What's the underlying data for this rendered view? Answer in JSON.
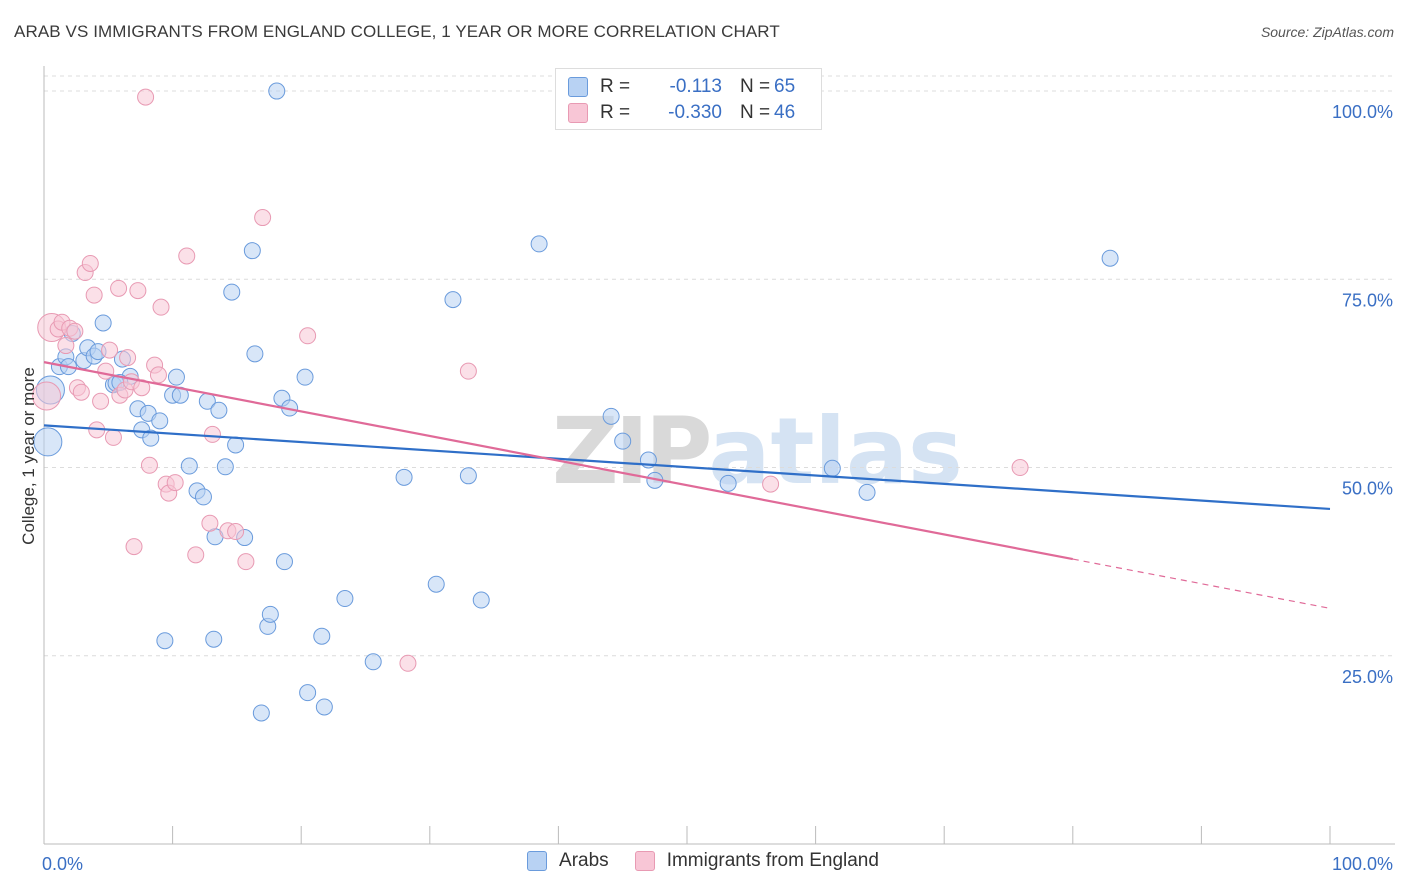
{
  "title": "ARAB VS IMMIGRANTS FROM ENGLAND COLLEGE, 1 YEAR OR MORE CORRELATION CHART",
  "source": "Source: ZipAtlas.com",
  "watermark": {
    "zip": "ZIP",
    "atlas": "atlas"
  },
  "legend_top": [
    {
      "label": "R =",
      "r": "-0.113",
      "n_label": "N =",
      "n": "65"
    },
    {
      "label": "R =",
      "r": "-0.330",
      "n_label": "N =",
      "n": "46"
    }
  ],
  "colors": {
    "arabs_fill": "#b8d2f3",
    "arabs_stroke": "#6a9bdc",
    "arabs_line": "#2f6fc8",
    "england_fill": "#f8c6d6",
    "england_stroke": "#e89ab3",
    "england_line": "#e06a98",
    "tick_label": "#3a6fc4",
    "grid": "#dcdcdc"
  },
  "chart_data": {
    "type": "scatter",
    "title": "ARAB VS IMMIGRANTS FROM ENGLAND COLLEGE, 1 YEAR OR MORE CORRELATION CHART",
    "xlabel": "",
    "ylabel": "College, 1 year or more",
    "xlim": [
      0,
      100
    ],
    "ylim": [
      0,
      102
    ],
    "x_tick_labels": [
      "0.0%",
      "100.0%"
    ],
    "y_ticks": [
      25,
      50,
      75,
      100
    ],
    "y_tick_labels": [
      "25.0%",
      "50.0%",
      "75.0%",
      "100.0%"
    ],
    "grid": true,
    "legend_position": "top-center",
    "series": [
      {
        "name": "Arabs",
        "r": -0.113,
        "n": 65,
        "trend": {
          "x0": 0,
          "y0": 55.6,
          "x1": 100,
          "y1": 44.5,
          "dashed_from": null
        },
        "points": [
          [
            0.3,
            53.4
          ],
          [
            0.5,
            60.3
          ],
          [
            1.2,
            63.4
          ],
          [
            1.7,
            64.7
          ],
          [
            2.2,
            67.8
          ],
          [
            3.1,
            64.2
          ],
          [
            3.4,
            65.9
          ],
          [
            3.9,
            64.8
          ],
          [
            4.6,
            69.2
          ],
          [
            5.4,
            61.0
          ],
          [
            6.1,
            64.4
          ],
          [
            5.6,
            61.2
          ],
          [
            6.7,
            62.1
          ],
          [
            7.3,
            57.8
          ],
          [
            7.6,
            55.0
          ],
          [
            8.1,
            57.2
          ],
          [
            9.0,
            56.2
          ],
          [
            8.3,
            53.9
          ],
          [
            10.3,
            62.0
          ],
          [
            10.0,
            59.6
          ],
          [
            10.6,
            59.6
          ],
          [
            11.3,
            50.2
          ],
          [
            11.9,
            46.9
          ],
          [
            12.4,
            46.1
          ],
          [
            12.7,
            58.8
          ],
          [
            13.3,
            40.8
          ],
          [
            13.6,
            57.6
          ],
          [
            14.1,
            50.1
          ],
          [
            14.6,
            73.3
          ],
          [
            14.9,
            53.0
          ],
          [
            15.6,
            40.7
          ],
          [
            16.2,
            78.8
          ],
          [
            16.4,
            65.1
          ],
          [
            16.9,
            17.4
          ],
          [
            17.4,
            28.9
          ],
          [
            17.6,
            30.5
          ],
          [
            18.1,
            100.0
          ],
          [
            18.5,
            59.2
          ],
          [
            18.7,
            37.5
          ],
          [
            19.1,
            57.9
          ],
          [
            20.3,
            62.0
          ],
          [
            20.5,
            20.1
          ],
          [
            21.6,
            27.6
          ],
          [
            21.8,
            18.2
          ],
          [
            23.4,
            32.6
          ],
          [
            25.6,
            24.2
          ],
          [
            28.0,
            48.7
          ],
          [
            30.5,
            34.5
          ],
          [
            31.8,
            72.3
          ],
          [
            33.0,
            48.9
          ],
          [
            34.0,
            32.4
          ],
          [
            38.5,
            79.7
          ],
          [
            44.1,
            56.8
          ],
          [
            45.0,
            53.5
          ],
          [
            47.0,
            51.0
          ],
          [
            47.5,
            48.3
          ],
          [
            53.2,
            47.9
          ],
          [
            61.3,
            49.9
          ],
          [
            64.0,
            46.7
          ],
          [
            82.9,
            77.8
          ],
          [
            9.4,
            27.0
          ],
          [
            13.2,
            27.2
          ],
          [
            5.9,
            61.3
          ],
          [
            1.9,
            63.4
          ],
          [
            4.2,
            65.4
          ]
        ]
      },
      {
        "name": "Immigrants from England",
        "r": -0.33,
        "n": 46,
        "trend": {
          "x0": 0,
          "y0": 64.0,
          "x1": 100,
          "y1": 31.3,
          "dashed_from": 80
        },
        "points": [
          [
            0.2,
            59.5
          ],
          [
            0.6,
            68.6
          ],
          [
            1.1,
            68.4
          ],
          [
            1.4,
            69.3
          ],
          [
            1.7,
            66.2
          ],
          [
            2.0,
            68.5
          ],
          [
            2.4,
            68.1
          ],
          [
            2.6,
            60.6
          ],
          [
            2.9,
            60.0
          ],
          [
            3.2,
            75.9
          ],
          [
            3.6,
            77.1
          ],
          [
            3.9,
            72.9
          ],
          [
            4.1,
            55.0
          ],
          [
            4.4,
            58.8
          ],
          [
            4.8,
            62.8
          ],
          [
            5.1,
            65.6
          ],
          [
            5.4,
            54.0
          ],
          [
            5.8,
            73.8
          ],
          [
            5.9,
            59.6
          ],
          [
            6.3,
            60.3
          ],
          [
            6.5,
            64.6
          ],
          [
            6.8,
            61.4
          ],
          [
            7.0,
            39.5
          ],
          [
            7.3,
            73.5
          ],
          [
            7.6,
            60.6
          ],
          [
            7.9,
            99.2
          ],
          [
            8.2,
            50.3
          ],
          [
            8.6,
            63.6
          ],
          [
            8.9,
            62.3
          ],
          [
            9.1,
            71.3
          ],
          [
            9.5,
            47.8
          ],
          [
            9.7,
            46.6
          ],
          [
            10.2,
            48.0
          ],
          [
            11.1,
            78.1
          ],
          [
            11.8,
            38.4
          ],
          [
            12.9,
            42.6
          ],
          [
            13.1,
            54.4
          ],
          [
            14.3,
            41.6
          ],
          [
            14.9,
            41.5
          ],
          [
            15.7,
            37.5
          ],
          [
            17.0,
            83.2
          ],
          [
            20.5,
            67.5
          ],
          [
            28.3,
            24.0
          ],
          [
            33.0,
            62.8
          ],
          [
            56.5,
            47.8
          ],
          [
            75.9,
            50.0
          ]
        ]
      }
    ]
  }
}
